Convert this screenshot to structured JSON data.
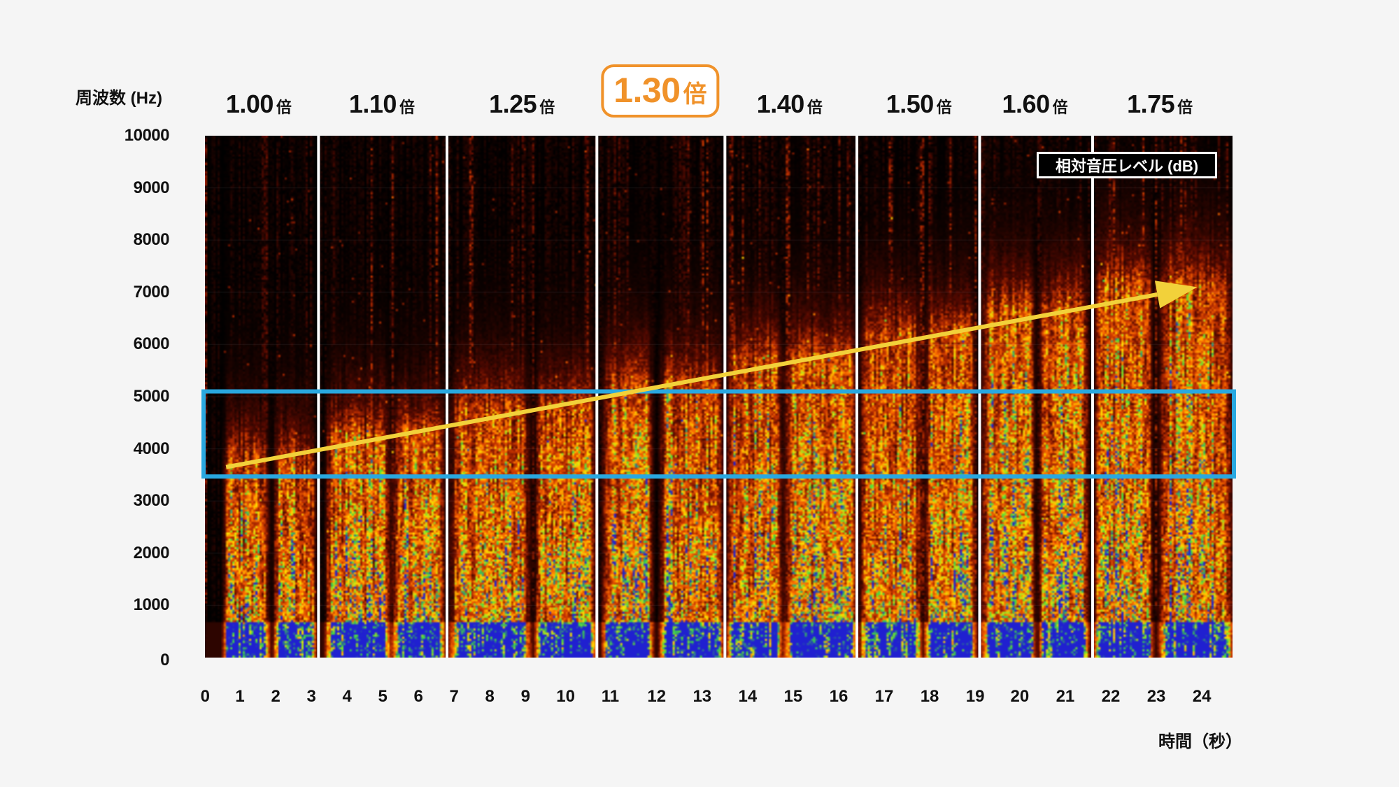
{
  "chart_data": {
    "type": "heatmap",
    "title": "",
    "ylabel": "周波数 (Hz)",
    "xlabel": "時間（秒）",
    "ylim": [
      0,
      10000
    ],
    "xlim": [
      0,
      24.8
    ],
    "y_ticks": [
      "0",
      "1000",
      "2000",
      "3000",
      "4000",
      "5000",
      "6000",
      "7000",
      "8000",
      "9000",
      "10000"
    ],
    "x_ticks": [
      "0",
      "1",
      "2",
      "3",
      "4",
      "5",
      "6",
      "7",
      "8",
      "9",
      "10",
      "11",
      "12",
      "13",
      "14",
      "15",
      "16",
      "17",
      "18",
      "19",
      "20",
      "21",
      "22",
      "23",
      "24"
    ],
    "legend_label": "相対音圧レベル (dB)",
    "colormap": [
      "#000000",
      "#5a0a00",
      "#c03000",
      "#ff7000",
      "#ffe000",
      "#40e040",
      "#2020d0"
    ],
    "speed_unit": "倍",
    "segments": [
      {
        "speed": "1.00",
        "highlight": false
      },
      {
        "speed": "1.10",
        "highlight": false
      },
      {
        "speed": "1.25",
        "highlight": false
      },
      {
        "speed": "1.30",
        "highlight": true
      },
      {
        "speed": "1.40",
        "highlight": false
      },
      {
        "speed": "1.50",
        "highlight": false
      },
      {
        "speed": "1.60",
        "highlight": false
      },
      {
        "speed": "1.75",
        "highlight": false
      }
    ],
    "segment_boundaries_sec": [
      3.2,
      6.8,
      10.7,
      13.5,
      16.4,
      19.1,
      21.6
    ],
    "highlight_band_hz": [
      3500,
      5000
    ],
    "trend_arrow": {
      "from": {
        "t": 0.6,
        "hz": 3650
      },
      "to": {
        "t": 23.9,
        "hz": 7100
      }
    },
    "highlight_color": "#29a8e0",
    "arrow_color": "#f2d13a",
    "accent_color": "#f0922a"
  }
}
